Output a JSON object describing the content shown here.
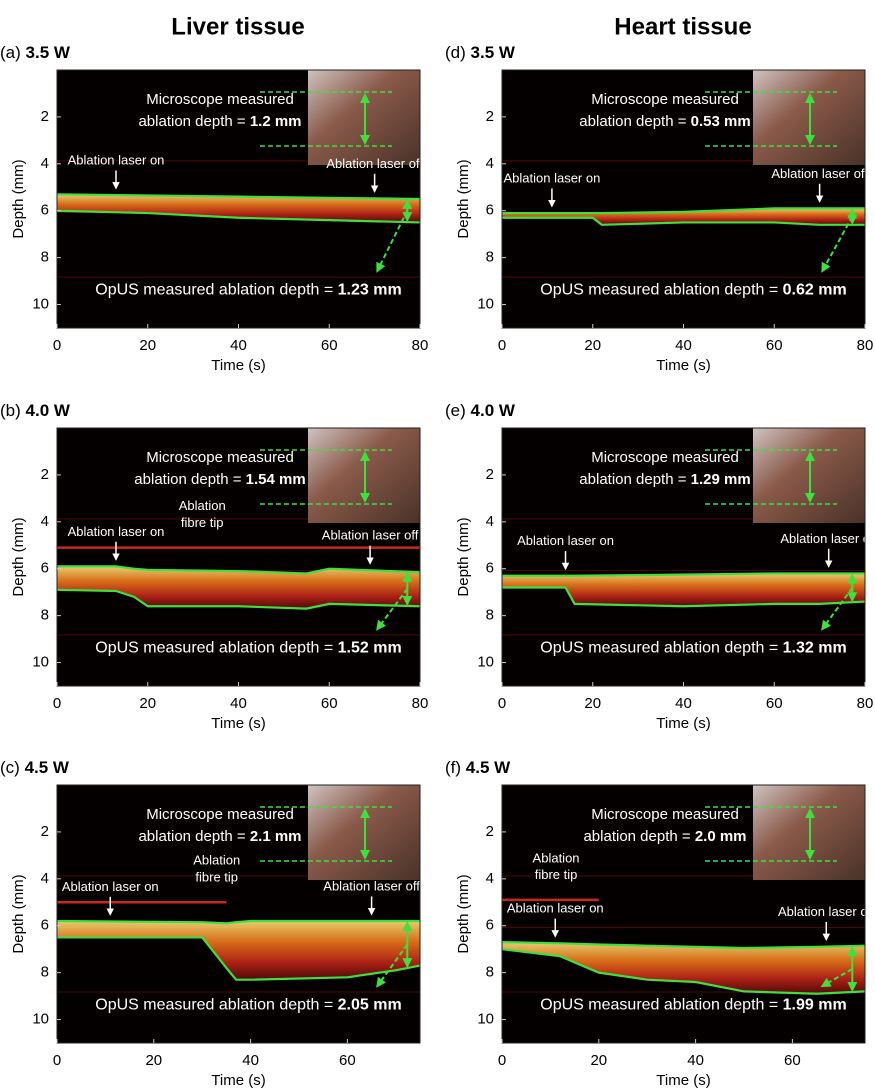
{
  "column_titles": [
    "Liver tissue",
    "Heart tissue"
  ],
  "chart_data": [
    {
      "type": "image",
      "label": "(a)",
      "title": "3.5 W",
      "xlabel": "Time (s)",
      "ylabel": "Depth (mm)",
      "xlim": [
        0,
        80
      ],
      "ylim": [
        0,
        11
      ],
      "y_inverted": true,
      "xticks": [
        0,
        20,
        40,
        60,
        80
      ],
      "yticks": [
        2,
        4,
        6,
        8,
        10
      ],
      "microscope_text": [
        "Microscope measured",
        "ablation depth = "
      ],
      "microscope_depth": "1.2 mm",
      "laser_on": {
        "label": "Ablation laser on",
        "x": 13
      },
      "laser_off": {
        "label": "Ablation laser off",
        "x": 70
      },
      "opus_text": "OpUS measured ablation depth = ",
      "opus_depth": "1.23 mm",
      "series": [
        {
          "color": "#3ee03e",
          "x": [
            0,
            20,
            40,
            60,
            80
          ],
          "values": [
            5.3,
            5.35,
            5.4,
            5.45,
            5.5
          ]
        },
        {
          "color": "#3ee03e",
          "x": [
            0,
            20,
            40,
            60,
            80
          ],
          "values": [
            6.0,
            6.1,
            6.3,
            6.4,
            6.5
          ]
        }
      ]
    },
    {
      "type": "image",
      "label": "(b)",
      "title": "4.0 W",
      "xlabel": "Time (s)",
      "ylabel": "Depth (mm)",
      "xlim": [
        0,
        80
      ],
      "ylim": [
        0,
        11
      ],
      "y_inverted": true,
      "xticks": [
        0,
        20,
        40,
        60,
        80
      ],
      "yticks": [
        2,
        4,
        6,
        8,
        10
      ],
      "microscope_text": [
        "Microscope measured",
        "ablation depth = "
      ],
      "microscope_depth": "1.54 mm",
      "laser_on": {
        "label": "Ablation laser on",
        "x": 13
      },
      "laser_off": {
        "label": "Ablation laser off",
        "x": 69
      },
      "fibre_tip": {
        "label": [
          "Ablation",
          "fibre tip"
        ],
        "x": 32
      },
      "opus_text": "OpUS measured ablation depth = ",
      "opus_depth": "1.52 mm",
      "series": [
        {
          "color": "#3ee03e",
          "x": [
            0,
            13,
            17,
            20,
            40,
            55,
            60,
            80
          ],
          "values": [
            5.9,
            5.9,
            6.0,
            6.05,
            6.1,
            6.2,
            6.0,
            6.15
          ]
        },
        {
          "color": "#3ee03e",
          "x": [
            0,
            13,
            17,
            20,
            40,
            55,
            60,
            80
          ],
          "values": [
            6.9,
            6.95,
            7.2,
            7.6,
            7.6,
            7.7,
            7.5,
            7.6
          ]
        },
        {
          "color": "#c8281e",
          "x": [
            0,
            80
          ],
          "values": [
            5.1,
            5.1
          ]
        }
      ]
    },
    {
      "type": "image",
      "label": "(c)",
      "title": "4.5 W",
      "xlabel": "Time (s)",
      "ylabel": "Depth (mm)",
      "xlim": [
        0,
        75
      ],
      "ylim": [
        0,
        11
      ],
      "y_inverted": true,
      "xticks": [
        0,
        20,
        40,
        60
      ],
      "yticks": [
        2,
        4,
        6,
        8,
        10
      ],
      "microscope_text": [
        "Microscope measured",
        "ablation depth = "
      ],
      "microscope_depth": "2.1 mm",
      "laser_on": {
        "label": "Ablation laser on",
        "x": 11
      },
      "laser_off": {
        "label": "Ablation laser off",
        "x": 65
      },
      "fibre_tip": {
        "label": [
          "Ablation",
          "fibre tip"
        ],
        "x": 33
      },
      "opus_text": "OpUS measured ablation depth = ",
      "opus_depth": "2.05 mm",
      "series": [
        {
          "color": "#3ee03e",
          "x": [
            0,
            30,
            35,
            37,
            40,
            60,
            70,
            75
          ],
          "values": [
            5.8,
            5.85,
            5.9,
            5.85,
            5.8,
            5.8,
            5.8,
            5.8
          ]
        },
        {
          "color": "#3ee03e",
          "x": [
            0,
            30,
            35,
            37,
            40,
            60,
            70,
            75
          ],
          "values": [
            6.5,
            6.5,
            7.8,
            8.3,
            8.3,
            8.2,
            7.9,
            7.7
          ]
        },
        {
          "color": "#c8281e",
          "x": [
            0,
            35
          ],
          "values": [
            5.0,
            5.0
          ]
        }
      ]
    },
    {
      "type": "image",
      "label": "(d)",
      "title": "3.5 W",
      "xlabel": "Time (s)",
      "ylabel": "Depth (mm)",
      "xlim": [
        0,
        80
      ],
      "ylim": [
        0,
        11
      ],
      "y_inverted": true,
      "xticks": [
        0,
        20,
        40,
        60,
        80
      ],
      "yticks": [
        2,
        4,
        6,
        8,
        10
      ],
      "microscope_text": [
        "Microscope measured",
        "ablation depth = "
      ],
      "microscope_depth": "0.53 mm",
      "laser_on": {
        "label": "Ablation laser on",
        "x": 11
      },
      "laser_off": {
        "label": "Ablation laser off",
        "x": 70
      },
      "opus_text": "OpUS measured ablation depth = ",
      "opus_depth": "0.62 mm",
      "series": [
        {
          "color": "#3ee03e",
          "x": [
            0,
            20,
            22,
            40,
            60,
            70,
            80
          ],
          "values": [
            6.1,
            6.1,
            6.1,
            6.05,
            5.9,
            5.9,
            5.9
          ]
        },
        {
          "color": "#3ee03e",
          "x": [
            0,
            20,
            22,
            40,
            60,
            70,
            80
          ],
          "values": [
            6.3,
            6.3,
            6.6,
            6.5,
            6.5,
            6.6,
            6.6
          ]
        }
      ]
    },
    {
      "type": "image",
      "label": "(e)",
      "title": "4.0 W",
      "xlabel": "Time (s)",
      "ylabel": "Depth (mm)",
      "xlim": [
        0,
        80
      ],
      "ylim": [
        0,
        11
      ],
      "y_inverted": true,
      "xticks": [
        0,
        20,
        40,
        60,
        80
      ],
      "yticks": [
        2,
        4,
        6,
        8,
        10
      ],
      "microscope_text": [
        "Microscope measured",
        "ablation depth = "
      ],
      "microscope_depth": "1.29 mm",
      "laser_on": {
        "label": "Ablation laser on",
        "x": 14
      },
      "laser_off": {
        "label": "Ablation laser off",
        "x": 72
      },
      "opus_text": "OpUS measured ablation depth = ",
      "opus_depth": "1.32 mm",
      "series": [
        {
          "color": "#3ee03e",
          "x": [
            0,
            14,
            16,
            40,
            60,
            70,
            80
          ],
          "values": [
            6.3,
            6.3,
            6.3,
            6.25,
            6.2,
            6.2,
            6.2
          ]
        },
        {
          "color": "#3ee03e",
          "x": [
            0,
            14,
            16,
            40,
            60,
            70,
            80
          ],
          "values": [
            6.8,
            6.8,
            7.5,
            7.6,
            7.5,
            7.5,
            7.4
          ]
        }
      ]
    },
    {
      "type": "image",
      "label": "(f)",
      "title": "4.5 W",
      "xlabel": "Time (s)",
      "ylabel": "Depth (mm)",
      "xlim": [
        0,
        75
      ],
      "ylim": [
        0,
        11
      ],
      "y_inverted": true,
      "xticks": [
        0,
        20,
        40,
        60
      ],
      "yticks": [
        2,
        4,
        6,
        8,
        10
      ],
      "microscope_text": [
        "Microscope measured",
        "ablation depth = "
      ],
      "microscope_depth": "2.0 mm",
      "laser_on": {
        "label": "Ablation laser on",
        "x": 11
      },
      "laser_off": {
        "label": "Ablation laser off",
        "x": 67
      },
      "fibre_tip": {
        "label": [
          "Ablation",
          "fibre tip"
        ],
        "x": 6
      },
      "opus_text": "OpUS measured ablation depth = ",
      "opus_depth": "1.99 mm",
      "series": [
        {
          "color": "#3ee03e",
          "x": [
            0,
            12,
            20,
            30,
            40,
            50,
            65,
            75
          ],
          "values": [
            6.7,
            6.75,
            6.8,
            6.85,
            6.9,
            6.95,
            6.9,
            6.85
          ]
        },
        {
          "color": "#3ee03e",
          "x": [
            0,
            12,
            20,
            30,
            40,
            50,
            65,
            75
          ],
          "values": [
            7.0,
            7.3,
            8.0,
            8.3,
            8.4,
            8.8,
            8.9,
            8.8
          ]
        },
        {
          "color": "#c8281e",
          "x": [
            0,
            20
          ],
          "values": [
            4.9,
            4.9
          ]
        }
      ]
    }
  ]
}
